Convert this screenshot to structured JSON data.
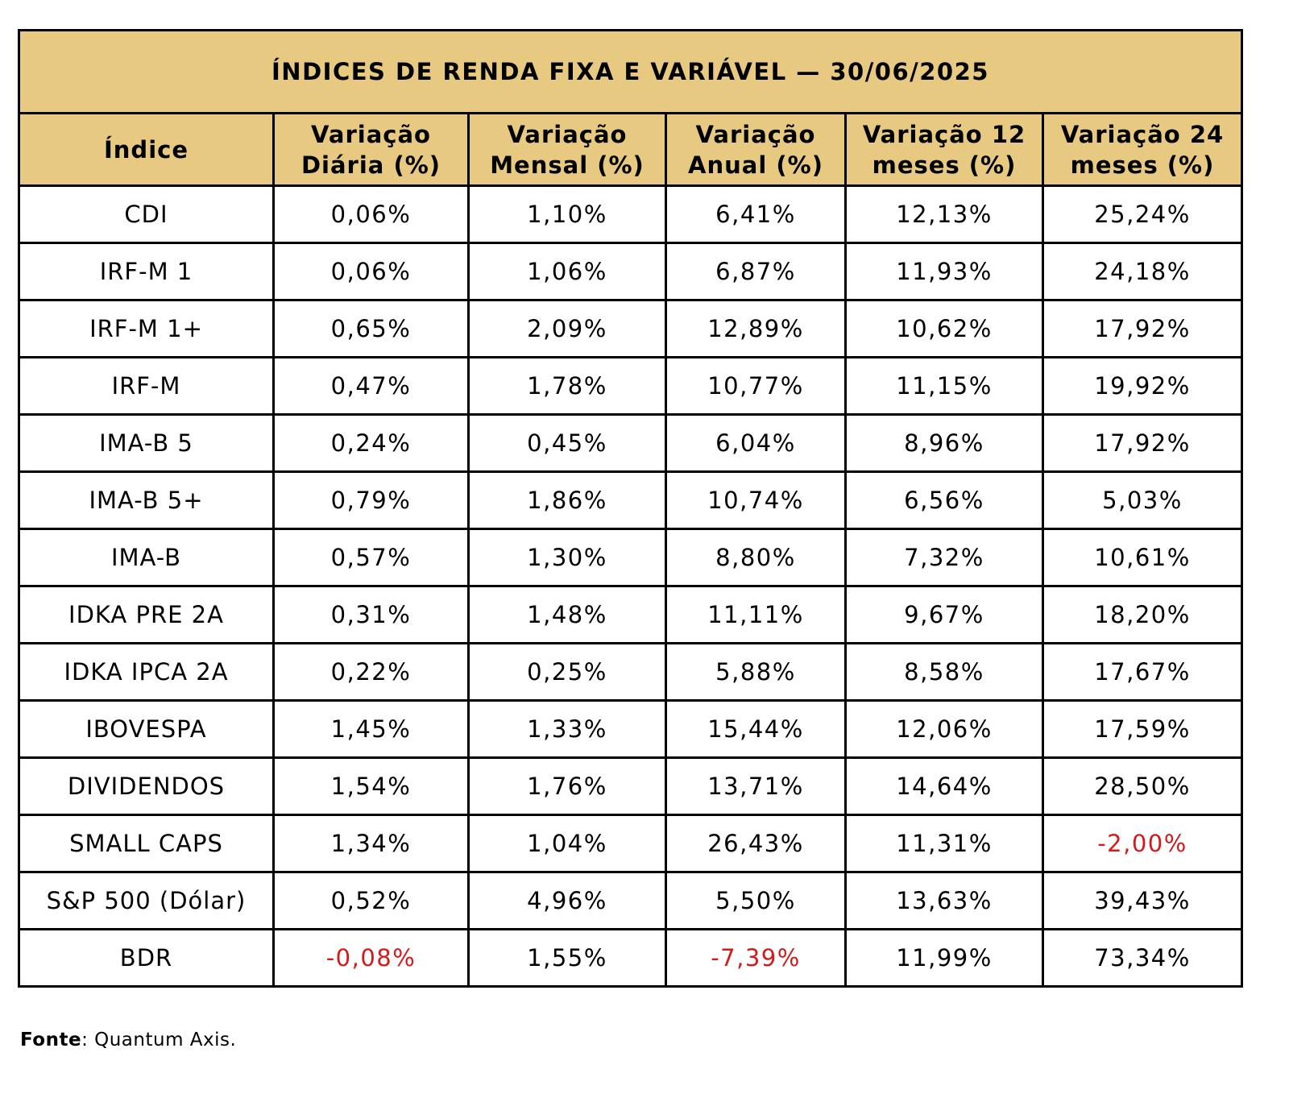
{
  "title": "ÍNDICES DE RENDA FIXA E VARIÁVEL — 30/06/2025",
  "headers": {
    "indice": "Índice",
    "diaria": [
      "Variação",
      "Diária (%)"
    ],
    "mensal": [
      "Variação",
      "Mensal (%)"
    ],
    "anual": [
      "Variação",
      "Anual (%)"
    ],
    "m12": [
      "Variação 12",
      "meses (%)"
    ],
    "m24": [
      "Variação 24",
      "meses (%)"
    ]
  },
  "rows": [
    {
      "indice": "CDI",
      "values": [
        "0,06%",
        "1,10%",
        "6,41%",
        "12,13%",
        "25,24%"
      ]
    },
    {
      "indice": "IRF-M 1",
      "values": [
        "0,06%",
        "1,06%",
        "6,87%",
        "11,93%",
        "24,18%"
      ]
    },
    {
      "indice": "IRF-M 1+",
      "values": [
        "0,65%",
        "2,09%",
        "12,89%",
        "10,62%",
        "17,92%"
      ]
    },
    {
      "indice": "IRF-M",
      "values": [
        "0,47%",
        "1,78%",
        "10,77%",
        "11,15%",
        "19,92%"
      ]
    },
    {
      "indice": "IMA-B 5",
      "values": [
        "0,24%",
        "0,45%",
        "6,04%",
        "8,96%",
        "17,92%"
      ]
    },
    {
      "indice": "IMA-B 5+",
      "values": [
        "0,79%",
        "1,86%",
        "10,74%",
        "6,56%",
        "5,03%"
      ]
    },
    {
      "indice": "IMA-B",
      "values": [
        "0,57%",
        "1,30%",
        "8,80%",
        "7,32%",
        "10,61%"
      ]
    },
    {
      "indice": "IDKA PRE 2A",
      "values": [
        "0,31%",
        "1,48%",
        "11,11%",
        "9,67%",
        "18,20%"
      ]
    },
    {
      "indice": "IDKA IPCA 2A",
      "values": [
        "0,22%",
        "0,25%",
        "5,88%",
        "8,58%",
        "17,67%"
      ]
    },
    {
      "indice": "IBOVESPA",
      "values": [
        "1,45%",
        "1,33%",
        "15,44%",
        "12,06%",
        "17,59%"
      ]
    },
    {
      "indice": "DIVIDENDOS",
      "values": [
        "1,54%",
        "1,76%",
        "13,71%",
        "14,64%",
        "28,50%"
      ]
    },
    {
      "indice": "SMALL CAPS",
      "values": [
        "1,34%",
        "1,04%",
        "26,43%",
        "11,31%",
        "-2,00%"
      ]
    },
    {
      "indice": "S&P 500 (Dólar)",
      "values": [
        "0,52%",
        "4,96%",
        "5,50%",
        "13,63%",
        "39,43%"
      ]
    },
    {
      "indice": "BDR",
      "values": [
        "-0,08%",
        "1,55%",
        "-7,39%",
        "11,99%",
        "73,34%"
      ]
    }
  ],
  "colors": {
    "header_bg": "#e7c982",
    "negative": "#d41a1a",
    "border": "#000000"
  },
  "source": {
    "label": "Fonte",
    "text": ": Quantum Axis."
  }
}
